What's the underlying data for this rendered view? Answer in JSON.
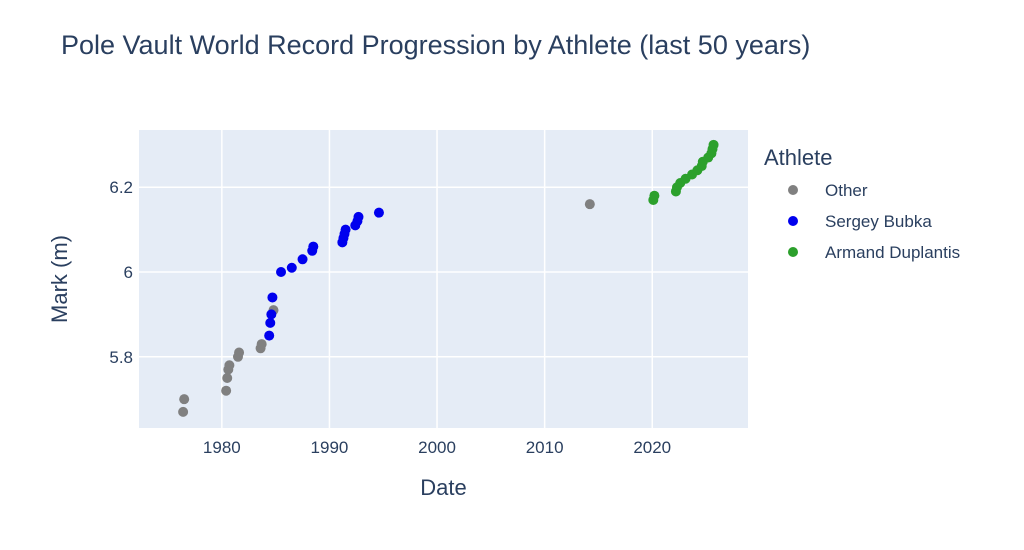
{
  "chart_data": {
    "type": "scatter",
    "title": "Pole Vault World Record Progression by Athlete (last 50 years)",
    "xlabel": "Date",
    "ylabel": "Mark (m)",
    "xlim": [
      1972.3,
      2028.9
    ],
    "ylim": [
      5.632,
      6.335
    ],
    "xticks": [
      1980,
      1990,
      2000,
      2010,
      2020
    ],
    "yticks": [
      5.8,
      6.0,
      6.2
    ],
    "ytick_labels": [
      "5.8",
      "6",
      "6.2"
    ],
    "grid": true,
    "legend": {
      "title": "Athlete",
      "position": "right"
    },
    "series": [
      {
        "name": "Other",
        "color": "#808080",
        "points": [
          {
            "x": 1976.4,
            "y": 5.67
          },
          {
            "x": 1976.5,
            "y": 5.7
          },
          {
            "x": 1980.4,
            "y": 5.72
          },
          {
            "x": 1980.5,
            "y": 5.75
          },
          {
            "x": 1980.6,
            "y": 5.77
          },
          {
            "x": 1980.7,
            "y": 5.78
          },
          {
            "x": 1981.5,
            "y": 5.8
          },
          {
            "x": 1981.6,
            "y": 5.81
          },
          {
            "x": 1983.6,
            "y": 5.82
          },
          {
            "x": 1983.7,
            "y": 5.83
          },
          {
            "x": 1984.8,
            "y": 5.91
          },
          {
            "x": 2014.2,
            "y": 6.16
          }
        ]
      },
      {
        "name": "Sergey Bubka",
        "color": "#0000ee",
        "points": [
          {
            "x": 1984.4,
            "y": 5.85
          },
          {
            "x": 1984.5,
            "y": 5.88
          },
          {
            "x": 1984.6,
            "y": 5.9
          },
          {
            "x": 1984.7,
            "y": 5.94
          },
          {
            "x": 1985.5,
            "y": 6.0
          },
          {
            "x": 1986.5,
            "y": 6.01
          },
          {
            "x": 1987.5,
            "y": 6.03
          },
          {
            "x": 1988.4,
            "y": 6.05
          },
          {
            "x": 1988.5,
            "y": 6.06
          },
          {
            "x": 1991.2,
            "y": 6.07
          },
          {
            "x": 1991.3,
            "y": 6.08
          },
          {
            "x": 1991.4,
            "y": 6.09
          },
          {
            "x": 1991.5,
            "y": 6.1
          },
          {
            "x": 1992.4,
            "y": 6.11
          },
          {
            "x": 1992.6,
            "y": 6.12
          },
          {
            "x": 1992.7,
            "y": 6.13
          },
          {
            "x": 1994.6,
            "y": 6.14
          }
        ]
      },
      {
        "name": "Armand Duplantis",
        "color": "#2ca02c",
        "points": [
          {
            "x": 2020.1,
            "y": 6.17
          },
          {
            "x": 2020.2,
            "y": 6.18
          },
          {
            "x": 2022.2,
            "y": 6.19
          },
          {
            "x": 2022.3,
            "y": 6.2
          },
          {
            "x": 2022.6,
            "y": 6.21
          },
          {
            "x": 2023.1,
            "y": 6.22
          },
          {
            "x": 2023.7,
            "y": 6.23
          },
          {
            "x": 2024.2,
            "y": 6.24
          },
          {
            "x": 2024.6,
            "y": 6.25
          },
          {
            "x": 2024.7,
            "y": 6.26
          },
          {
            "x": 2025.2,
            "y": 6.27
          },
          {
            "x": 2025.5,
            "y": 6.28
          },
          {
            "x": 2025.6,
            "y": 6.29
          },
          {
            "x": 2025.7,
            "y": 6.3
          }
        ]
      }
    ]
  }
}
